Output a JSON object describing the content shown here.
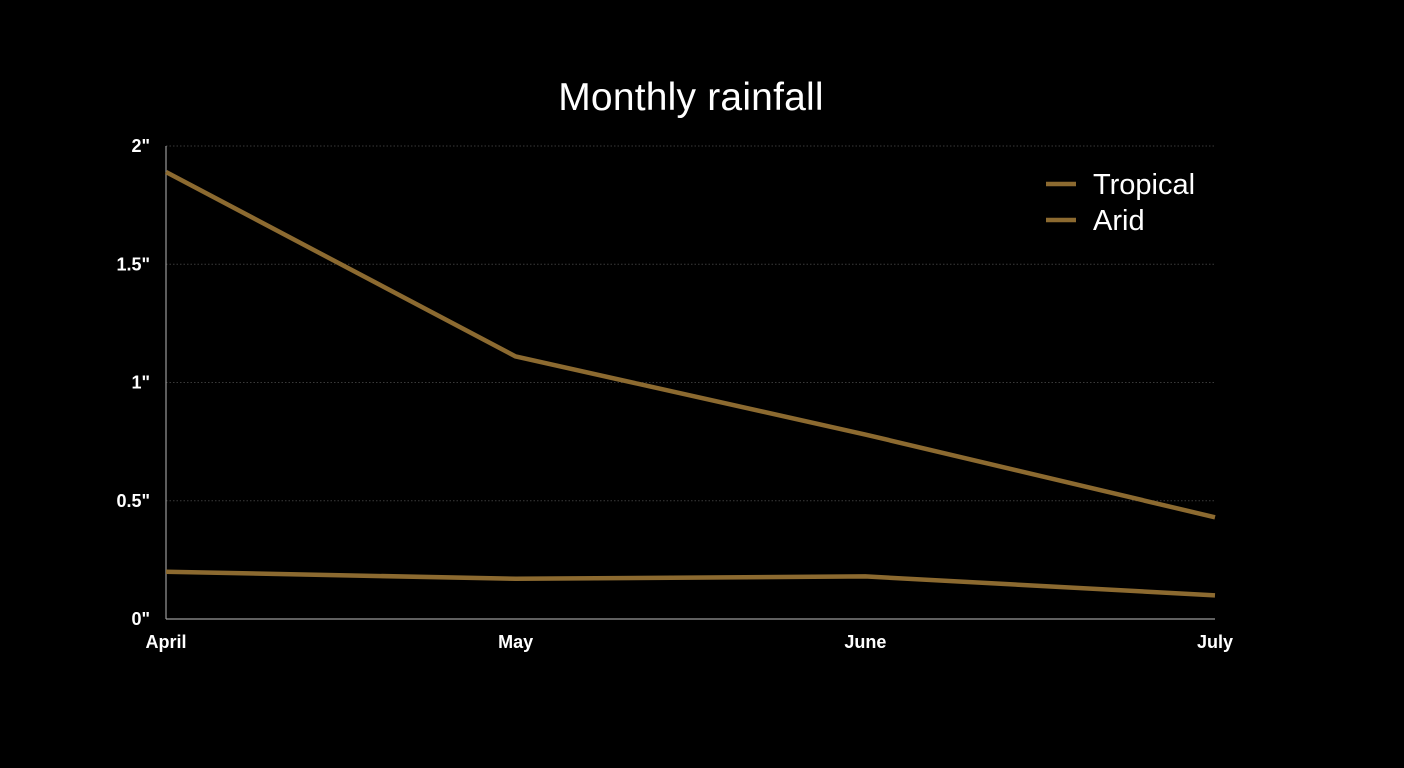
{
  "chart_data": {
    "type": "line",
    "title": "Monthly rainfall",
    "xlabel": "",
    "ylabel": "",
    "categories": [
      "April",
      "May",
      "June",
      "July"
    ],
    "y_ticks": [
      0,
      0.5,
      1,
      1.5,
      2
    ],
    "y_tick_labels": [
      "0\"",
      "0.5\"",
      "1\"",
      "1.5\"",
      "2\""
    ],
    "ylim": [
      0,
      2
    ],
    "grid": true,
    "legend_position": "top-right",
    "series": [
      {
        "name": "Tropical",
        "values": [
          1.89,
          1.11,
          0.78,
          0.43
        ],
        "color": "#8c6a30"
      },
      {
        "name": "Arid",
        "values": [
          0.2,
          0.17,
          0.18,
          0.1
        ],
        "color": "#8c6a30"
      }
    ],
    "colors": {
      "background": "#000000",
      "grid": "#3a3a3a",
      "axis": "#9a9a9a",
      "text": "#ffffff"
    }
  }
}
